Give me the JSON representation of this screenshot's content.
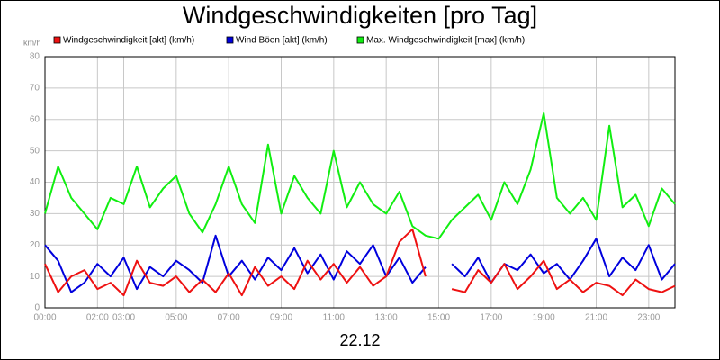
{
  "chart_data": {
    "type": "line",
    "title": "Windgeschwindigkeiten [pro Tag]",
    "y_label": "km/h",
    "x_label": "22.12",
    "x": [
      0,
      0.5,
      1,
      1.5,
      2,
      2.5,
      3,
      3.5,
      4,
      4.5,
      5,
      5.5,
      6,
      6.5,
      7,
      7.5,
      8,
      8.5,
      9,
      9.5,
      10,
      10.5,
      11,
      11.5,
      12,
      12.5,
      13,
      13.5,
      14,
      14.5,
      15,
      15.5,
      16,
      16.5,
      17,
      17.5,
      18,
      18.5,
      19,
      19.5,
      20,
      20.5,
      21,
      21.5,
      22,
      22.5,
      23,
      23.5,
      24
    ],
    "series": [
      {
        "name": "Windgeschwindigkeit [akt] (km/h)",
        "color": "#ee1111",
        "values": [
          14,
          5,
          10,
          12,
          6,
          8,
          4,
          15,
          8,
          7,
          10,
          5,
          9,
          5,
          11,
          4,
          13,
          7,
          10,
          6,
          15,
          9,
          14,
          8,
          13,
          7,
          10,
          21,
          25,
          10,
          null,
          6,
          5,
          12,
          8,
          14,
          6,
          10,
          15,
          6,
          9,
          5,
          8,
          7,
          4,
          9,
          6,
          5,
          7
        ]
      },
      {
        "name": "Wind Böen [akt] (km/h)",
        "color": "#0000dd",
        "values": [
          20,
          15,
          5,
          8,
          14,
          10,
          16,
          6,
          13,
          10,
          15,
          12,
          8,
          23,
          10,
          15,
          9,
          16,
          12,
          19,
          11,
          17,
          9,
          18,
          14,
          20,
          10,
          16,
          8,
          13,
          null,
          14,
          10,
          16,
          8,
          14,
          12,
          17,
          11,
          14,
          9,
          15,
          22,
          10,
          16,
          12,
          20,
          9,
          14
        ]
      },
      {
        "name": "Max. Windgeschwindigkeit [max] (km/h)",
        "color": "#11ee11",
        "values": [
          30,
          45,
          35,
          30,
          25,
          35,
          33,
          45,
          32,
          38,
          42,
          30,
          24,
          33,
          45,
          33,
          27,
          52,
          30,
          42,
          35,
          30,
          50,
          32,
          40,
          33,
          30,
          37,
          26,
          23,
          22,
          28,
          32,
          36,
          28,
          40,
          33,
          44,
          62,
          35,
          30,
          35,
          28,
          58,
          32,
          36,
          26,
          38,
          33
        ]
      }
    ],
    "xlim": [
      0,
      24
    ],
    "xticks": [
      {
        "value": 0,
        "label": "00:00"
      },
      {
        "value": 2,
        "label": "02:00"
      },
      {
        "value": 3,
        "label": "03:00"
      },
      {
        "value": 5,
        "label": "05:00"
      },
      {
        "value": 7,
        "label": "07:00"
      },
      {
        "value": 9,
        "label": "09:00"
      },
      {
        "value": 11,
        "label": "11:00"
      },
      {
        "value": 13,
        "label": "13:00"
      },
      {
        "value": 15,
        "label": "15:00"
      },
      {
        "value": 17,
        "label": "17:00"
      },
      {
        "value": 19,
        "label": "19:00"
      },
      {
        "value": 21,
        "label": "21:00"
      },
      {
        "value": 23,
        "label": "23:00"
      }
    ],
    "ylim": [
      0,
      80
    ],
    "yticks": [
      0,
      10,
      20,
      30,
      40,
      50,
      60,
      70,
      80
    ],
    "grid": true
  }
}
